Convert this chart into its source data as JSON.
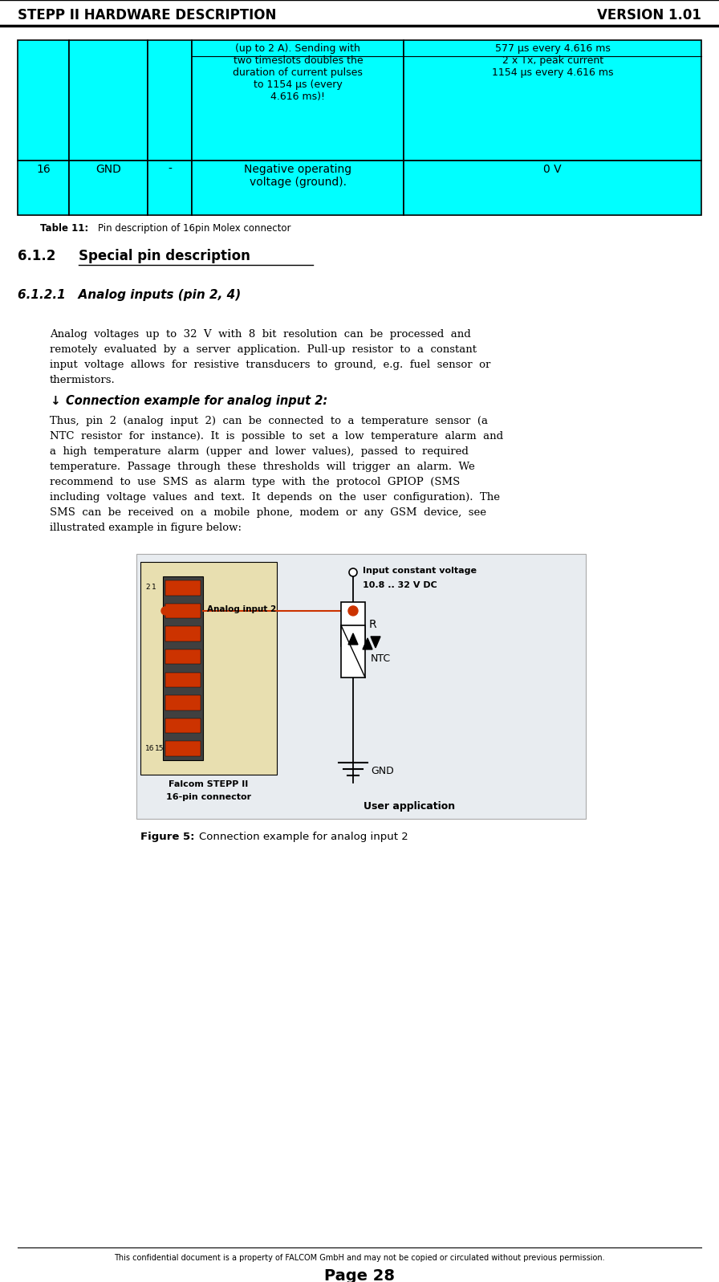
{
  "header_left": "STEPP II HARDWARE DESCRIPTION",
  "header_right": "VERSION 1.01",
  "table_row1_col4": "(up to 2 A). Sending with\ntwo timeslots doubles the\nduration of current pulses\nto 1154 µs (every\n4.616 ms)!",
  "table_row1_col5": "577 µs every 4.616 ms\n2 x Tx, peak current\n1154 µs every 4.616 ms",
  "table_row2_col1": "16",
  "table_row2_col2": "GND",
  "table_row2_col3": "-",
  "table_row2_col4": "Negative operating\nvoltage (ground).",
  "table_row2_col5": "0 V",
  "section_612": "6.1.2",
  "section_612_title": "Special pin description",
  "section_6121": "6.1.2.1",
  "section_6121_title": "Analog inputs (pin 2, 4)",
  "body1_lines": [
    "Analog  voltages  up  to  32  V  with  8  bit  resolution  can  be  processed  and",
    "remotely  evaluated  by  a  server  application.  Pull-up  resistor  to  a  constant",
    "input  voltage  allows  for  resistive  transducers  to  ground,  e.g.  fuel  sensor  or",
    "thermistors."
  ],
  "body2_lines": [
    "Thus,  pin  2  (analog  input  2)  can  be  connected  to  a  temperature  sensor  (a",
    "NTC  resistor  for  instance).  It  is  possible  to  set  a  low  temperature  alarm  and",
    "a  high  temperature  alarm  (upper  and  lower  values),  passed  to  required",
    "temperature.  Passage  through  these  thresholds  will  trigger  an  alarm.  We",
    "recommend  to  use  SMS  as  alarm  type  with  the  protocol  GPIOP  (SMS",
    "including  voltage  values  and  text.  It  depends  on  the  user  configuration).  The",
    "SMS  can  be  received  on  a  mobile  phone,  modem  or  any  GSM  device,  see",
    "illustrated example in figure below:"
  ],
  "footer_text": "This confidential document is a property of FALCOM GmbH and may not be copied or circulated without previous permission.",
  "footer_page": "Page 28",
  "cyan_color": "#00FFFF",
  "bg_color": "#FFFFFF",
  "fig_bg_color": "#E8ECF0",
  "connector_bg_color": "#E8DFB0",
  "connector_body_color": "#404040",
  "pin_color": "#CC3300"
}
